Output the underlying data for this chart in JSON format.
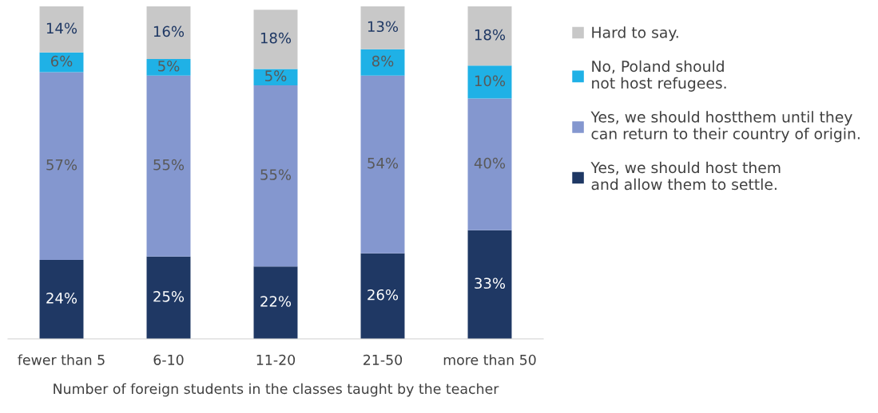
{
  "chart_data": {
    "type": "bar",
    "stacked": true,
    "xlabel": "Number of foreign students in the classes taught by the teacher",
    "categories": [
      "fewer than 5",
      "6-10",
      "11-20",
      "21-50",
      "more than 50"
    ],
    "series": [
      {
        "name": "Yes, we should host them\nand allow them to settle.",
        "color": "#1f3864",
        "values": [
          24,
          25,
          22,
          26,
          33
        ],
        "value_labels": [
          "24%",
          "25%",
          "22%",
          "26%",
          "33%"
        ]
      },
      {
        "name": "Yes, we should hostthem until they\ncan return to their country of origin.",
        "color": "#8497cf",
        "values": [
          57,
          55,
          55,
          54,
          40
        ],
        "value_labels": [
          "57%",
          "55%",
          "55%",
          "54%",
          "40%"
        ]
      },
      {
        "name": "No, Poland should\nnot host refugees.",
        "color": "#1fb1e6",
        "values": [
          6,
          5,
          5,
          8,
          10
        ],
        "value_labels": [
          "6%",
          "5%",
          "5%",
          "8%",
          "10%"
        ]
      },
      {
        "name": "Hard to say.",
        "color": "#c8c8c8",
        "values": [
          14,
          16,
          18,
          13,
          18
        ],
        "value_labels": [
          "14%",
          "16%",
          "18%",
          "13%",
          "18%"
        ]
      }
    ],
    "legend": "right",
    "grid": false
  }
}
